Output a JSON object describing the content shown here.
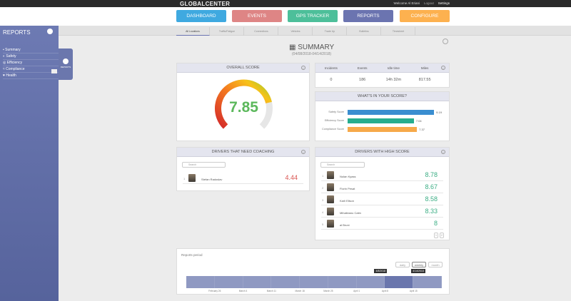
{
  "header": {
    "logo": "GLOBALCENTER",
    "welcome": "Welcome Al Eriani",
    "logout": "Logout",
    "settings": "Settings"
  },
  "nav": [
    {
      "label": "DASHBOARD",
      "color": "#3fa9e0"
    },
    {
      "label": "EVENTS",
      "color": "#de8585"
    },
    {
      "label": "GPS TRACKER",
      "color": "#4dbf9a"
    },
    {
      "label": "REPORTS",
      "color": "#6b74b0"
    },
    {
      "label": "CONFIGURE",
      "color": "#fdb14f"
    }
  ],
  "subtabs": [
    "All Locations",
    "Traffic/Fatigue",
    "Connections",
    "Vehicles",
    "Trade Up",
    "Bulletins",
    "Timesheet"
  ],
  "sidebar": {
    "title": "REPORTS",
    "items": [
      "Summary",
      "Safety",
      "Efficiency",
      "Compliance",
      "Health"
    ],
    "flyout_label": "REPORTS"
  },
  "page": {
    "title": "SUMMARY",
    "range": "(04/08/2018-04/14/2018)"
  },
  "overall": {
    "title": "OVERALL SCORE",
    "value": "7.85",
    "fraction": 0.785
  },
  "stats": {
    "headers": [
      "Incidents",
      "Events",
      "Idle time",
      "Miles"
    ],
    "values": [
      "0",
      "186",
      "14h 32m",
      "817.55"
    ]
  },
  "score_breakdown": {
    "title": "WHAT'S IN YOUR SCORE?",
    "items": [
      {
        "label": "Safety Score",
        "value": "9.19",
        "color": "#3a8ed0"
      },
      {
        "label": "Efficiency Score",
        "value": "7.04",
        "color": "#26ad8e"
      },
      {
        "label": "Compliance Score",
        "value": "7.37",
        "color": "#f6a94a"
      }
    ]
  },
  "coaching": {
    "title": "DRIVERS THAT NEED COACHING",
    "search_placeholder": "Search",
    "drivers": [
      {
        "rank": "1",
        "name": "Stefan Radoslav",
        "score": "4.44"
      }
    ]
  },
  "high": {
    "title": "DRIVERS WITH HIGH SCORE",
    "search_placeholder": "Search",
    "drivers": [
      {
        "rank": "1",
        "name": "Nolan Kyass",
        "score": "8.78"
      },
      {
        "rank": "2",
        "name": "Florin Pesat",
        "score": "8.67"
      },
      {
        "rank": "3",
        "name": "Karli Ellson",
        "score": "8.58"
      },
      {
        "rank": "4",
        "name": "Mihaileanu Catin",
        "score": "8.33"
      },
      {
        "rank": "5",
        "name": "al Bruni",
        "score": "8"
      }
    ],
    "pages": [
      "1",
      "2"
    ]
  },
  "period": {
    "title": "Reports period",
    "buttons": [
      "daily",
      "weekly",
      "month"
    ],
    "ticks": [
      "February 26",
      "March 4",
      "March 11",
      "March 18",
      "March 25",
      "April 1",
      "April 8",
      "April 15"
    ],
    "start": "4/8/2018",
    "end": "4/14/2018"
  }
}
